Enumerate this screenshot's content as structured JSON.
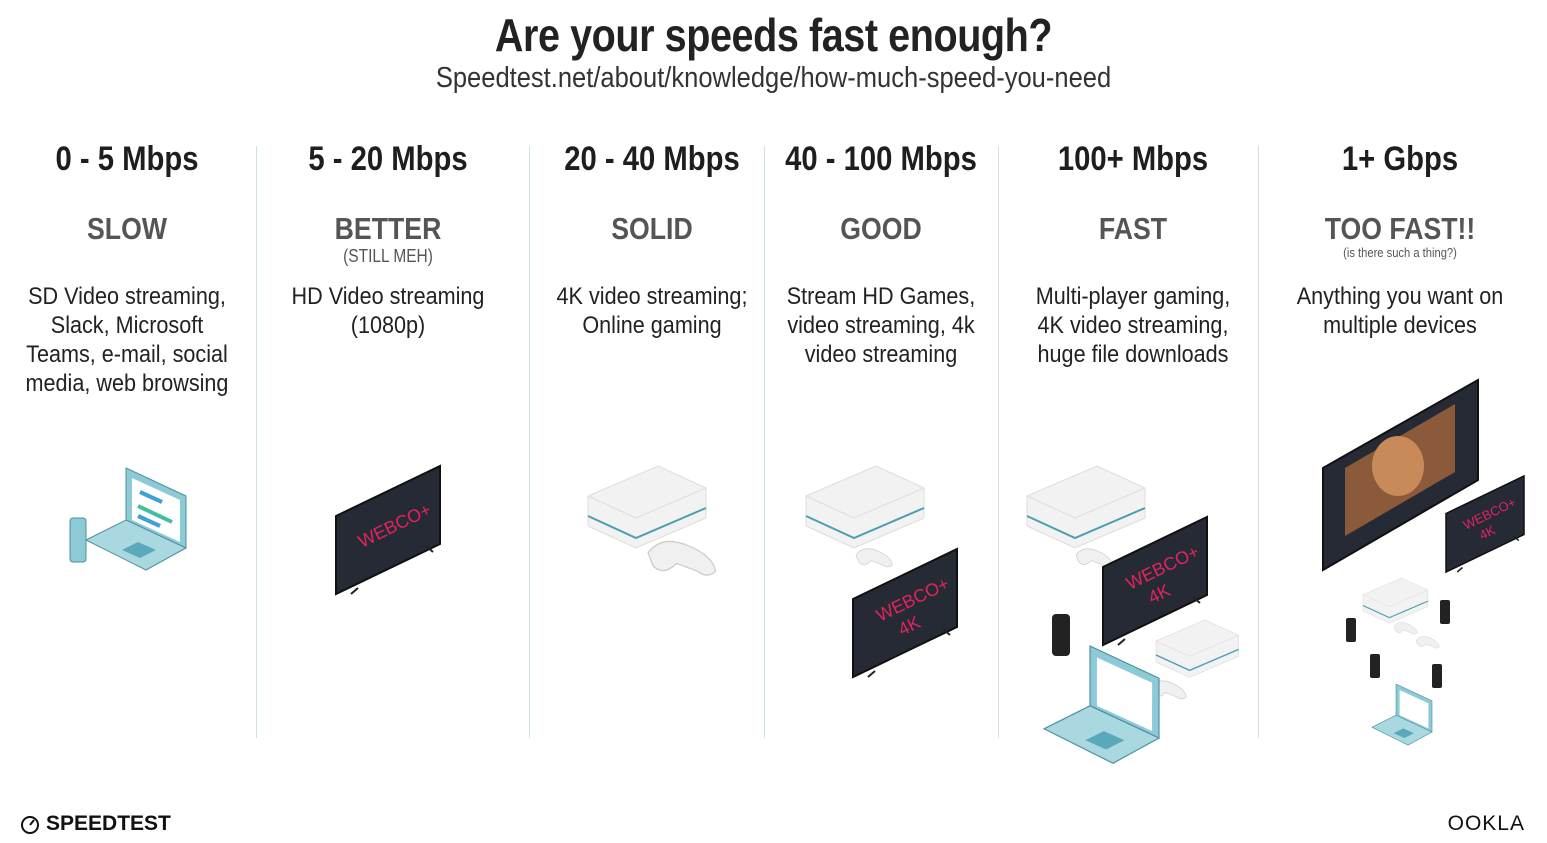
{
  "header": {
    "title": "Are your speeds fast enough?",
    "subtitle": "Speedtest.net/about/knowledge/how-much-speed-you-need"
  },
  "tiers": [
    {
      "range": "0 - 5 Mbps",
      "label": "SLOW",
      "note": "",
      "description": "SD Video streaming, Slack, Microsoft Teams, e-mail, social media, web browsing"
    },
    {
      "range": "5 - 20 Mbps",
      "label": "BETTER",
      "note": "(STILL MEH)",
      "description": "HD Video streaming (1080p)"
    },
    {
      "range": "20 - 40 Mbps",
      "label": "SOLID",
      "note": "",
      "description": "4K video streaming; Online gaming"
    },
    {
      "range": "40 - 100 Mbps",
      "label": "GOOD",
      "note": "",
      "description": "Stream HD Games, video streaming, 4k video streaming"
    },
    {
      "range": "100+ Mbps",
      "label": "FAST",
      "note": "",
      "description": "Multi-player gaming, 4K video streaming, huge file downloads"
    },
    {
      "range": "1+ Gbps",
      "label": "TOO FAST!!",
      "note": "(is there such a thing?)",
      "description": "Anything you want on multiple devices"
    }
  ],
  "tv_logo": {
    "text": "WEBCO+",
    "text_4k": "4K"
  },
  "footer": {
    "left_brand": "SPEEDTEST",
    "right_brand": "OOKLA"
  },
  "colors": {
    "tv": "#262a35",
    "tv_logo": "#e0245e",
    "laptop": "#8ccad6",
    "console": "#eeeeee",
    "divider": "#cfe1e5"
  }
}
